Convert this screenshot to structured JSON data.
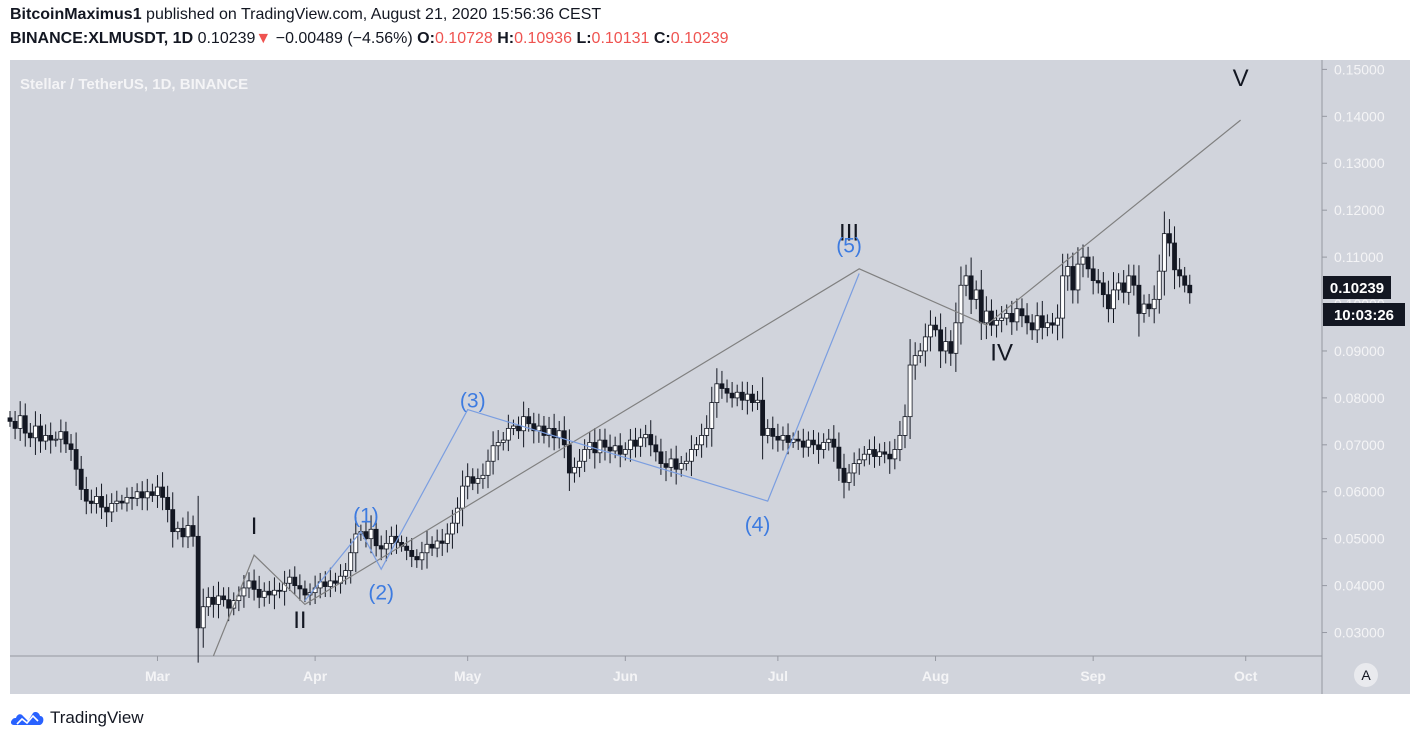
{
  "header": {
    "author": "BitcoinMaximus1",
    "published_text": "published on TradingView.com, August 21, 2020 15:56:36 CEST",
    "symbol": "BINANCE:XLMUSDT, 1D",
    "last": "0.10239",
    "change": "−0.00489 (−4.56%)",
    "open_label": "O:",
    "open": "0.10728",
    "high_label": "H:",
    "high": "0.10936",
    "low_label": "L:",
    "low": "0.10131",
    "close_label": "C:",
    "close": "0.10239",
    "down_arrow": "▼"
  },
  "chart_title": "Stellar / TetherUS, 1D, BINANCE",
  "price_tag": "0.10239",
  "countdown_tag": "10:03:26",
  "auto_scale_label": "A",
  "footer": {
    "brand": "TradingView"
  },
  "colors": {
    "pane_bg": "#d1d4dc",
    "candle_border": "#131722",
    "candle_up_fill": "#ffffff",
    "candle_down_fill": "#131722",
    "wave_major": "#808080",
    "wave_minor": "#7b9ee0",
    "label_major": "#131722",
    "label_minor": "#3d7be0",
    "tag_bg": "#131722",
    "brand_blue": "#2962ff"
  },
  "chart_data": {
    "type": "candlestick",
    "symbol": "XLMUSDT",
    "interval": "1D",
    "ylim": [
      0.025,
      0.152
    ],
    "yticks": [
      "0.03000",
      "0.04000",
      "0.05000",
      "0.06000",
      "0.07000",
      "0.08000",
      "0.09000",
      "0.10000",
      "0.11000",
      "0.12000",
      "0.13000",
      "0.14000",
      "0.15000"
    ],
    "xlim": [
      "2020-02-01",
      "2020-10-16"
    ],
    "xticks": [
      {
        "date": "2020-03-01",
        "label": "Mar"
      },
      {
        "date": "2020-04-01",
        "label": "Apr"
      },
      {
        "date": "2020-05-01",
        "label": "May"
      },
      {
        "date": "2020-06-01",
        "label": "Jun"
      },
      {
        "date": "2020-07-01",
        "label": "Jul"
      },
      {
        "date": "2020-08-01",
        "label": "Aug"
      },
      {
        "date": "2020-09-01",
        "label": "Sep"
      },
      {
        "date": "2020-10-01",
        "label": "Oct"
      }
    ],
    "candles_start": "2020-02-01",
    "candles_close": [
      0.075,
      0.0735,
      0.0762,
      0.0725,
      0.0715,
      0.074,
      0.0708,
      0.072,
      0.071,
      0.0712,
      0.0728,
      0.0702,
      0.069,
      0.0648,
      0.0605,
      0.058,
      0.0575,
      0.059,
      0.0567,
      0.0557,
      0.0575,
      0.058,
      0.0576,
      0.0588,
      0.0586,
      0.06,
      0.0587,
      0.06,
      0.0592,
      0.061,
      0.0588,
      0.0562,
      0.0515,
      0.0522,
      0.0504,
      0.0528,
      0.0505,
      0.031,
      0.0355,
      0.0375,
      0.036,
      0.0378,
      0.037,
      0.0352,
      0.0368,
      0.0378,
      0.0395,
      0.041,
      0.0392,
      0.0375,
      0.0388,
      0.038,
      0.039,
      0.0388,
      0.0405,
      0.0418,
      0.04,
      0.0393,
      0.038,
      0.0385,
      0.0395,
      0.0408,
      0.0398,
      0.041,
      0.0405,
      0.042,
      0.0432,
      0.047,
      0.051,
      0.0515,
      0.05,
      0.052,
      0.0485,
      0.0478,
      0.049,
      0.0505,
      0.0492,
      0.0484,
      0.0475,
      0.0462,
      0.0455,
      0.047,
      0.0488,
      0.048,
      0.0495,
      0.049,
      0.051,
      0.0533,
      0.0565,
      0.0612,
      0.0632,
      0.0618,
      0.0628,
      0.0635,
      0.0665,
      0.0698,
      0.0705,
      0.071,
      0.0735,
      0.074,
      0.073,
      0.076,
      0.0745,
      0.073,
      0.074,
      0.072,
      0.0735,
      0.0715,
      0.073,
      0.07,
      0.064,
      0.0652,
      0.0665,
      0.069,
      0.0705,
      0.0683,
      0.071,
      0.0695,
      0.0687,
      0.0698,
      0.068,
      0.069,
      0.071,
      0.0697,
      0.0715,
      0.0722,
      0.07,
      0.0685,
      0.066,
      0.0652,
      0.067,
      0.0648,
      0.066,
      0.0665,
      0.069,
      0.07,
      0.072,
      0.0735,
      0.079,
      0.083,
      0.082,
      0.081,
      0.08,
      0.0812,
      0.0795,
      0.0808,
      0.079,
      0.0795,
      0.072,
      0.0735,
      0.0718,
      0.071,
      0.072,
      0.0705,
      0.0712,
      0.0708,
      0.0695,
      0.071,
      0.07,
      0.069,
      0.0705,
      0.0712,
      0.0695,
      0.065,
      0.062,
      0.064,
      0.066,
      0.0668,
      0.068,
      0.069,
      0.0675,
      0.0685,
      0.068,
      0.067,
      0.069,
      0.072,
      0.076,
      0.087,
      0.089,
      0.09,
      0.093,
      0.0955,
      0.0945,
      0.09,
      0.092,
      0.0895,
      0.096,
      0.104,
      0.106,
      0.101,
      0.103,
      0.096,
      0.0985,
      0.0955,
      0.0965,
      0.097,
      0.098,
      0.0962,
      0.099,
      0.0975,
      0.096,
      0.0945,
      0.0975,
      0.095,
      0.096,
      0.0955,
      0.097,
      0.106,
      0.108,
      0.103,
      0.1085,
      0.11,
      0.1075,
      0.105,
      0.1045,
      0.102,
      0.099,
      0.103,
      0.1045,
      0.1025,
      0.106,
      0.104,
      0.098,
      0.1,
      0.099,
      0.101,
      0.107,
      0.115,
      0.113,
      0.1073,
      0.106,
      0.104,
      0.1024
    ],
    "waves_major": [
      {
        "date": "2020-03-12",
        "y": 0.025
      },
      {
        "date": "2020-03-20",
        "y": 0.0465
      },
      {
        "date": "2020-03-30",
        "y": 0.036
      },
      {
        "date": "2020-07-17",
        "y": 0.1075
      },
      {
        "date": "2020-08-11",
        "y": 0.0955
      },
      {
        "date": "2020-09-30",
        "y": 0.1392
      }
    ],
    "waves_minor": [
      {
        "date": "2020-03-30",
        "y": 0.0368
      },
      {
        "date": "2020-04-10",
        "y": 0.0515
      },
      {
        "date": "2020-04-14",
        "y": 0.0435
      },
      {
        "date": "2020-05-01",
        "y": 0.0775
      },
      {
        "date": "2020-06-29",
        "y": 0.058
      },
      {
        "date": "2020-07-17",
        "y": 0.1065
      }
    ],
    "labels_major": [
      {
        "text": "I",
        "date": "2020-03-20",
        "y": 0.051
      },
      {
        "text": "II",
        "date": "2020-03-29",
        "y": 0.031
      },
      {
        "text": "III",
        "date": "2020-07-15",
        "y": 0.1135
      },
      {
        "text": "IV",
        "date": "2020-08-14",
        "y": 0.088
      },
      {
        "text": "V",
        "date": "2020-09-30",
        "y": 0.1465
      }
    ],
    "labels_minor": [
      {
        "text": "(1)",
        "date": "2020-04-11",
        "y": 0.0535
      },
      {
        "text": "(2)",
        "date": "2020-04-14",
        "y": 0.037
      },
      {
        "text": "(3)",
        "date": "2020-05-02",
        "y": 0.078
      },
      {
        "text": "(4)",
        "date": "2020-06-27",
        "y": 0.0515
      },
      {
        "text": "(5)",
        "date": "2020-07-15",
        "y": 0.111
      }
    ]
  }
}
